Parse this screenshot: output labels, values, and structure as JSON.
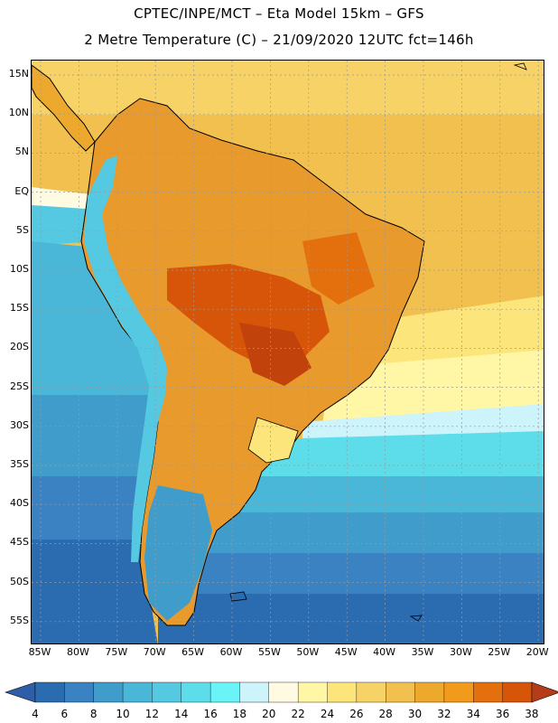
{
  "header": {
    "line1": "CPTEC/INPE/MCT –  Eta Model 15km – GFS",
    "line2": "2 Metre Temperature (C) – 21/09/2020 12UTC fct=146h"
  },
  "axes": {
    "lat_labels": [
      "15N",
      "10N",
      "5N",
      "EQ",
      "5S",
      "10S",
      "15S",
      "20S",
      "25S",
      "30S",
      "35S",
      "40S",
      "45S",
      "50S",
      "55S"
    ],
    "lon_labels": [
      "85W",
      "80W",
      "75W",
      "70W",
      "65W",
      "60W",
      "55W",
      "50W",
      "45W",
      "40W",
      "35W",
      "30W",
      "25W",
      "20W"
    ]
  },
  "colorbar": {
    "ticks": [
      "4",
      "6",
      "8",
      "10",
      "12",
      "14",
      "16",
      "18",
      "20",
      "22",
      "24",
      "26",
      "28",
      "30",
      "32",
      "34",
      "36",
      "38"
    ],
    "colors": [
      "#2b6bb0",
      "#3a82c2",
      "#3f9ccb",
      "#4ab6d8",
      "#56c9e2",
      "#5ddcea",
      "#6af4f8",
      "#cdf3fb",
      "#fffbe2",
      "#fff6a6",
      "#fce57a",
      "#f7d266",
      "#f2c04e",
      "#eda92e",
      "#f19a1c",
      "#e46f0d",
      "#d65508",
      "#c2420c",
      "#b53c18"
    ]
  },
  "legend": {
    "temperature_scale": [
      {
        "min": -99,
        "max": 4,
        "color": "#2f5ea8"
      },
      {
        "min": 4,
        "max": 6,
        "color": "#2b6bb0"
      },
      {
        "min": 6,
        "max": 8,
        "color": "#3a82c2"
      },
      {
        "min": 8,
        "max": 10,
        "color": "#3f9ccb"
      },
      {
        "min": 10,
        "max": 12,
        "color": "#4ab6d8"
      },
      {
        "min": 12,
        "max": 14,
        "color": "#56c9e2"
      },
      {
        "min": 14,
        "max": 16,
        "color": "#5ddcea"
      },
      {
        "min": 16,
        "max": 18,
        "color": "#6af4f8"
      },
      {
        "min": 18,
        "max": 20,
        "color": "#cdf3fb"
      },
      {
        "min": 20,
        "max": 22,
        "color": "#fffbe2"
      },
      {
        "min": 22,
        "max": 24,
        "color": "#fff6a6"
      },
      {
        "min": 24,
        "max": 26,
        "color": "#fce57a"
      },
      {
        "min": 26,
        "max": 28,
        "color": "#f7d266"
      },
      {
        "min": 28,
        "max": 30,
        "color": "#f2c04e"
      },
      {
        "min": 30,
        "max": 32,
        "color": "#eda92e"
      },
      {
        "min": 32,
        "max": 34,
        "color": "#f19a1c"
      },
      {
        "min": 34,
        "max": 36,
        "color": "#e46f0d"
      },
      {
        "min": 36,
        "max": 38,
        "color": "#d65508"
      },
      {
        "min": 38,
        "max": 99,
        "color": "#b53c18"
      }
    ]
  }
}
